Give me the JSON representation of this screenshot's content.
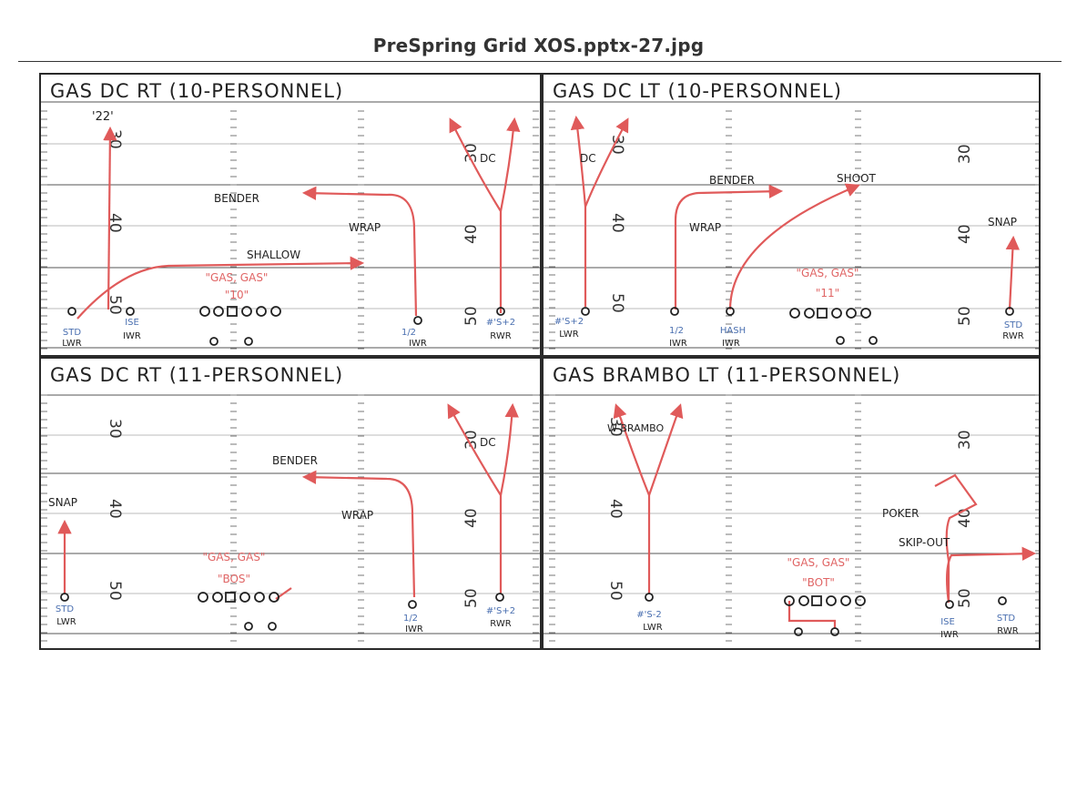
{
  "document_title": "PreSpring Grid XOS.pptx-27.jpg",
  "colors": {
    "route": "#e05a5a",
    "ink": "#222222",
    "blue_label": "#4a6fb0",
    "red_label": "#e06565"
  },
  "panels": [
    {
      "title": "GAS DC RT (10-PERSONNEL)",
      "yard_numbers": [
        "30",
        "40",
        "50",
        "30",
        "40",
        "50"
      ],
      "route_labels": [
        "'22'",
        "BENDER",
        "WRAP",
        "SHALLOW",
        "DC"
      ],
      "call": [
        "\"GAS, GAS\"",
        "\"10\""
      ],
      "alignments": [
        {
          "align": "STD",
          "pos": "LWR"
        },
        {
          "align": "ISE",
          "pos": "IWR"
        },
        {
          "align": "1/2",
          "pos": "IWR"
        },
        {
          "align": "#'S+2",
          "pos": "RWR"
        }
      ]
    },
    {
      "title": "GAS DC LT (10-PERSONNEL)",
      "yard_numbers": [
        "30",
        "40",
        "50",
        "30",
        "40",
        "50"
      ],
      "route_labels": [
        "DC",
        "BENDER",
        "WRAP",
        "SHOOT",
        "SNAP"
      ],
      "call": [
        "\"GAS, GAS\"",
        "\"11\""
      ],
      "alignments": [
        {
          "align": "#'S+2",
          "pos": "LWR"
        },
        {
          "align": "1/2",
          "pos": "IWR"
        },
        {
          "align": "HASH",
          "pos": "IWR"
        },
        {
          "align": "STD",
          "pos": "RWR"
        }
      ]
    },
    {
      "title": "GAS DC RT (11-PERSONNEL)",
      "yard_numbers": [
        "30",
        "40",
        "50",
        "30",
        "40",
        "50"
      ],
      "route_labels": [
        "SNAP",
        "BENDER",
        "WRAP",
        "DC"
      ],
      "call": [
        "\"GAS, GAS\"",
        "\"BOS\""
      ],
      "alignments": [
        {
          "align": "STD",
          "pos": "LWR"
        },
        {
          "align": "1/2",
          "pos": "IWR"
        },
        {
          "align": "#'S+2",
          "pos": "RWR"
        }
      ]
    },
    {
      "title": "GAS BRAMBO LT (11-PERSONNEL)",
      "yard_numbers": [
        "30",
        "40",
        "50",
        "30",
        "40",
        "50"
      ],
      "route_labels": [
        "W BRAMBO",
        "POKER",
        "SKIP-OUT"
      ],
      "call": [
        "\"GAS, GAS\"",
        "\"BOT\""
      ],
      "alignments": [
        {
          "align": "#'S-2",
          "pos": "LWR"
        },
        {
          "align": "ISE",
          "pos": "IWR"
        },
        {
          "align": "STD",
          "pos": "RWR"
        }
      ]
    }
  ]
}
